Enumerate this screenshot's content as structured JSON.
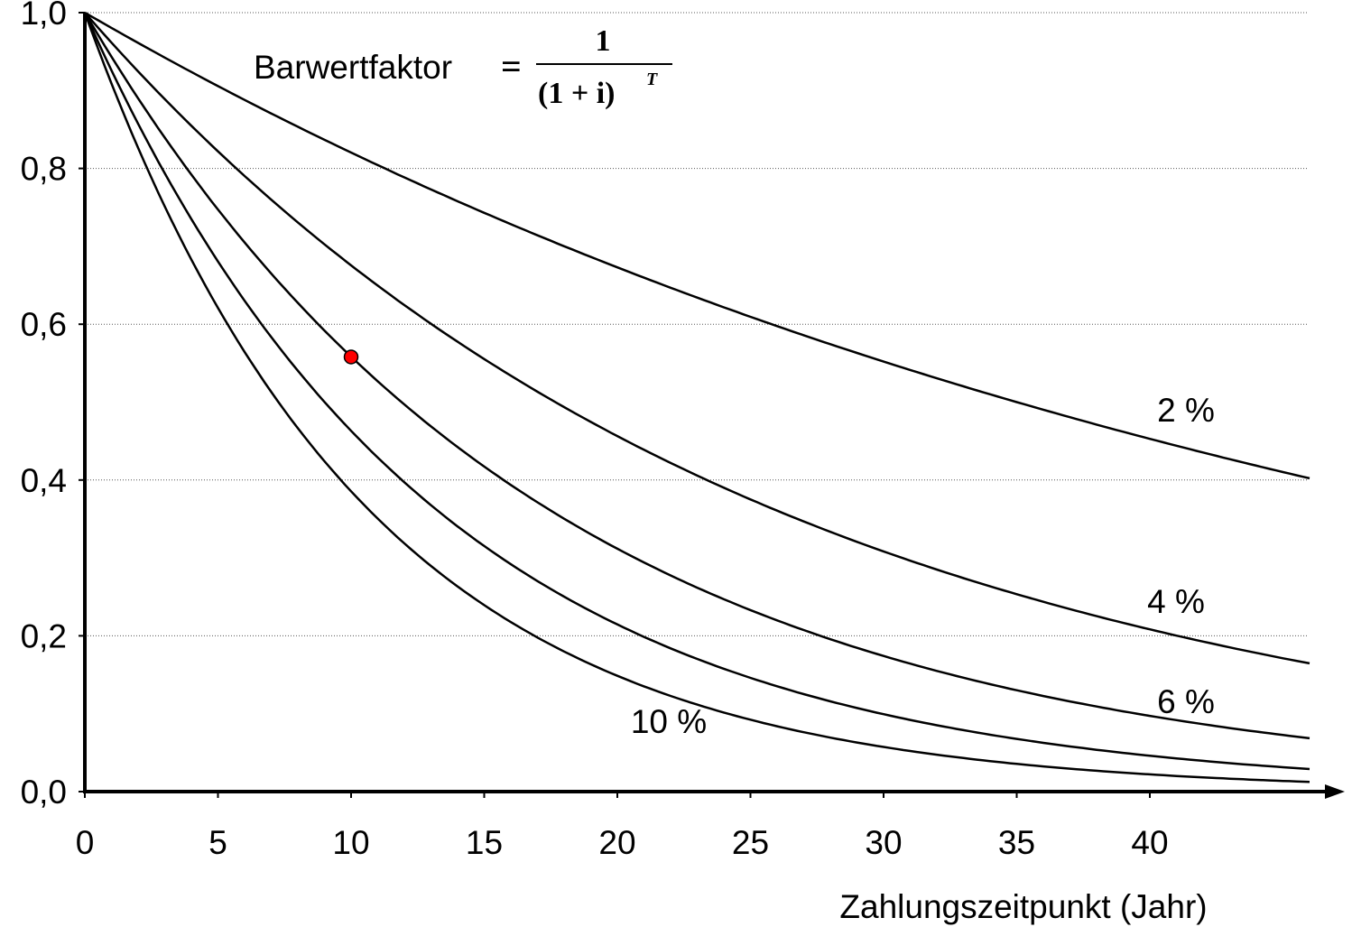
{
  "formula": {
    "label": "Barwertfaktor",
    "equals": "=",
    "numerator": "1",
    "denominator": "(1 + i)",
    "exponent": "T"
  },
  "chart_data": {
    "type": "line",
    "title": "",
    "xlabel": "Zahlungszeitpunkt (Jahr)",
    "ylabel": "",
    "xlim": [
      0,
      46
    ],
    "ylim": [
      0,
      1
    ],
    "x_ticks": [
      0,
      5,
      10,
      15,
      20,
      25,
      30,
      35,
      40
    ],
    "x_tick_labels": [
      "0",
      "5",
      "10",
      "15",
      "20",
      "25",
      "30",
      "35",
      "40"
    ],
    "y_ticks": [
      0,
      0.2,
      0.4,
      0.6,
      0.8,
      1.0
    ],
    "y_tick_labels": [
      "0,0",
      "0,2",
      "0,4",
      "0,6",
      "0,8",
      "1,0"
    ],
    "grid": "horizontal dotted",
    "series": [
      {
        "name": "2 %",
        "rate": 0.02
      },
      {
        "name": "4 %",
        "rate": 0.04
      },
      {
        "name": "6 %",
        "rate": 0.06
      },
      {
        "name": "",
        "rate": 0.08
      },
      {
        "name": "10 %",
        "rate": 0.1
      }
    ],
    "highlight_point": {
      "x": 10,
      "y": 0.558,
      "color": "#ff0000"
    }
  }
}
